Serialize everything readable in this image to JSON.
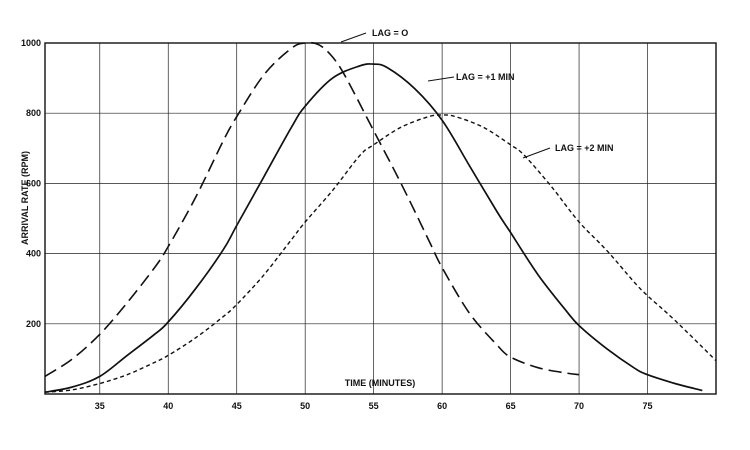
{
  "chart_data": {
    "type": "line",
    "title": "",
    "xlabel": "TIME (MINUTES)",
    "ylabel": "ARRIVAL RATE (RPM)",
    "xlim": [
      31,
      80
    ],
    "ylim": [
      0,
      1000
    ],
    "x_ticks": [
      35,
      40,
      45,
      50,
      55,
      60,
      65,
      70,
      75
    ],
    "y_ticks": [
      200,
      400,
      600,
      800,
      1000
    ],
    "grid": true,
    "legend": "none (curves labeled directly with annotations)",
    "series": [
      {
        "name": "LAG = O",
        "style": "long-dash",
        "x": [
          31,
          33,
          35,
          37,
          39,
          40,
          42,
          44,
          45,
          47,
          49,
          50,
          51,
          52,
          53,
          55,
          57,
          59,
          60,
          62,
          64,
          65,
          67,
          69,
          70
        ],
        "y": [
          50,
          100,
          170,
          260,
          360,
          420,
          560,
          720,
          790,
          910,
          985,
          1000,
          995,
          960,
          900,
          750,
          600,
          440,
          360,
          230,
          140,
          105,
          75,
          60,
          55
        ]
      },
      {
        "name": "LAG = +1 MIN",
        "style": "solid",
        "x": [
          31,
          33,
          35,
          37,
          39,
          40,
          42,
          44,
          45,
          47,
          49,
          50,
          52,
          54,
          55,
          56,
          58,
          60,
          62,
          64,
          65,
          67,
          69,
          70,
          72,
          74,
          75,
          77,
          79
        ],
        "y": [
          5,
          20,
          50,
          110,
          170,
          205,
          300,
          410,
          480,
          620,
          760,
          820,
          900,
          935,
          940,
          930,
          870,
          780,
          650,
          520,
          460,
          340,
          240,
          195,
          130,
          75,
          55,
          30,
          10
        ]
      },
      {
        "name": "LAG = +2 MIN",
        "style": "short-dash",
        "x": [
          31,
          33,
          35,
          37,
          39,
          40,
          42,
          44,
          45,
          47,
          49,
          50,
          52,
          54,
          55,
          57,
          59,
          60,
          61,
          63,
          65,
          66,
          68,
          70,
          72,
          74,
          75,
          77,
          80
        ],
        "y": [
          5,
          12,
          30,
          55,
          90,
          110,
          160,
          220,
          255,
          340,
          440,
          490,
          580,
          680,
          710,
          760,
          790,
          795,
          790,
          760,
          710,
          680,
          590,
          490,
          410,
          320,
          280,
          210,
          95
        ]
      }
    ],
    "annotations": [
      "LAG = O",
      "LAG = +1 MIN",
      "LAG = +2 MIN"
    ]
  }
}
